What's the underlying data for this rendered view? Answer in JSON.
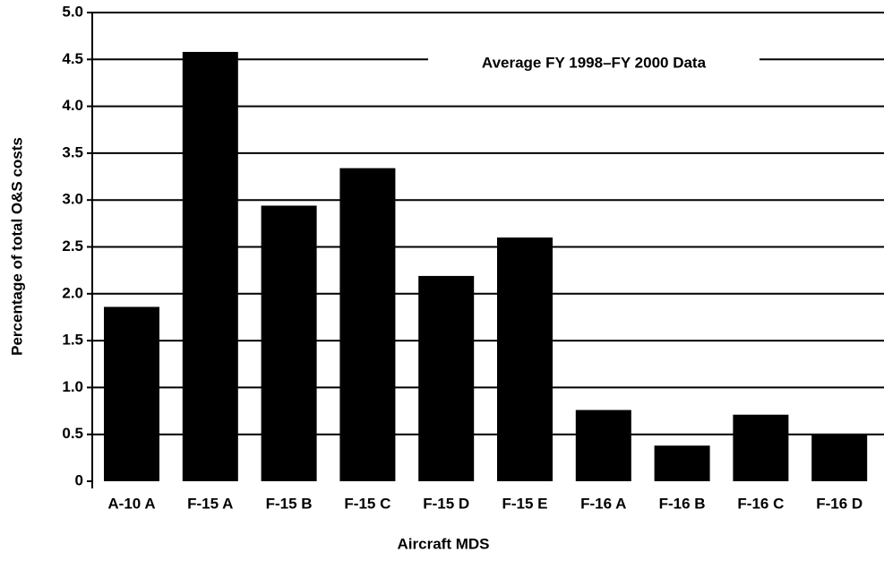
{
  "chart_data": {
    "type": "bar",
    "annotation": "Average FY 1998–FY 2000 Data",
    "x_label": "Aircraft MDS",
    "y_label": "Percentage of total O&S costs",
    "categories": [
      "A-10 A",
      "F-15 A",
      "F-15 B",
      "F-15 C",
      "F-15 D",
      "F-15 E",
      "F-16 A",
      "F-16 B",
      "F-16 C",
      "F-16 D"
    ],
    "values": [
      1.86,
      4.58,
      2.94,
      3.34,
      2.19,
      2.6,
      0.76,
      0.38,
      0.71,
      0.5
    ],
    "color": "#000000",
    "ylim": [
      0,
      5
    ],
    "yticks": [
      0,
      0.5,
      {
        "value": 1,
        "label": "1.0"
      },
      1.5,
      {
        "value": 2,
        "label": "2.0"
      },
      2.5,
      {
        "value": 3,
        "label": "3.0"
      },
      3.5,
      {
        "value": 4,
        "label": "4.0"
      },
      4.5,
      {
        "value": 5,
        "label": "5.0"
      }
    ],
    "grid": true
  }
}
